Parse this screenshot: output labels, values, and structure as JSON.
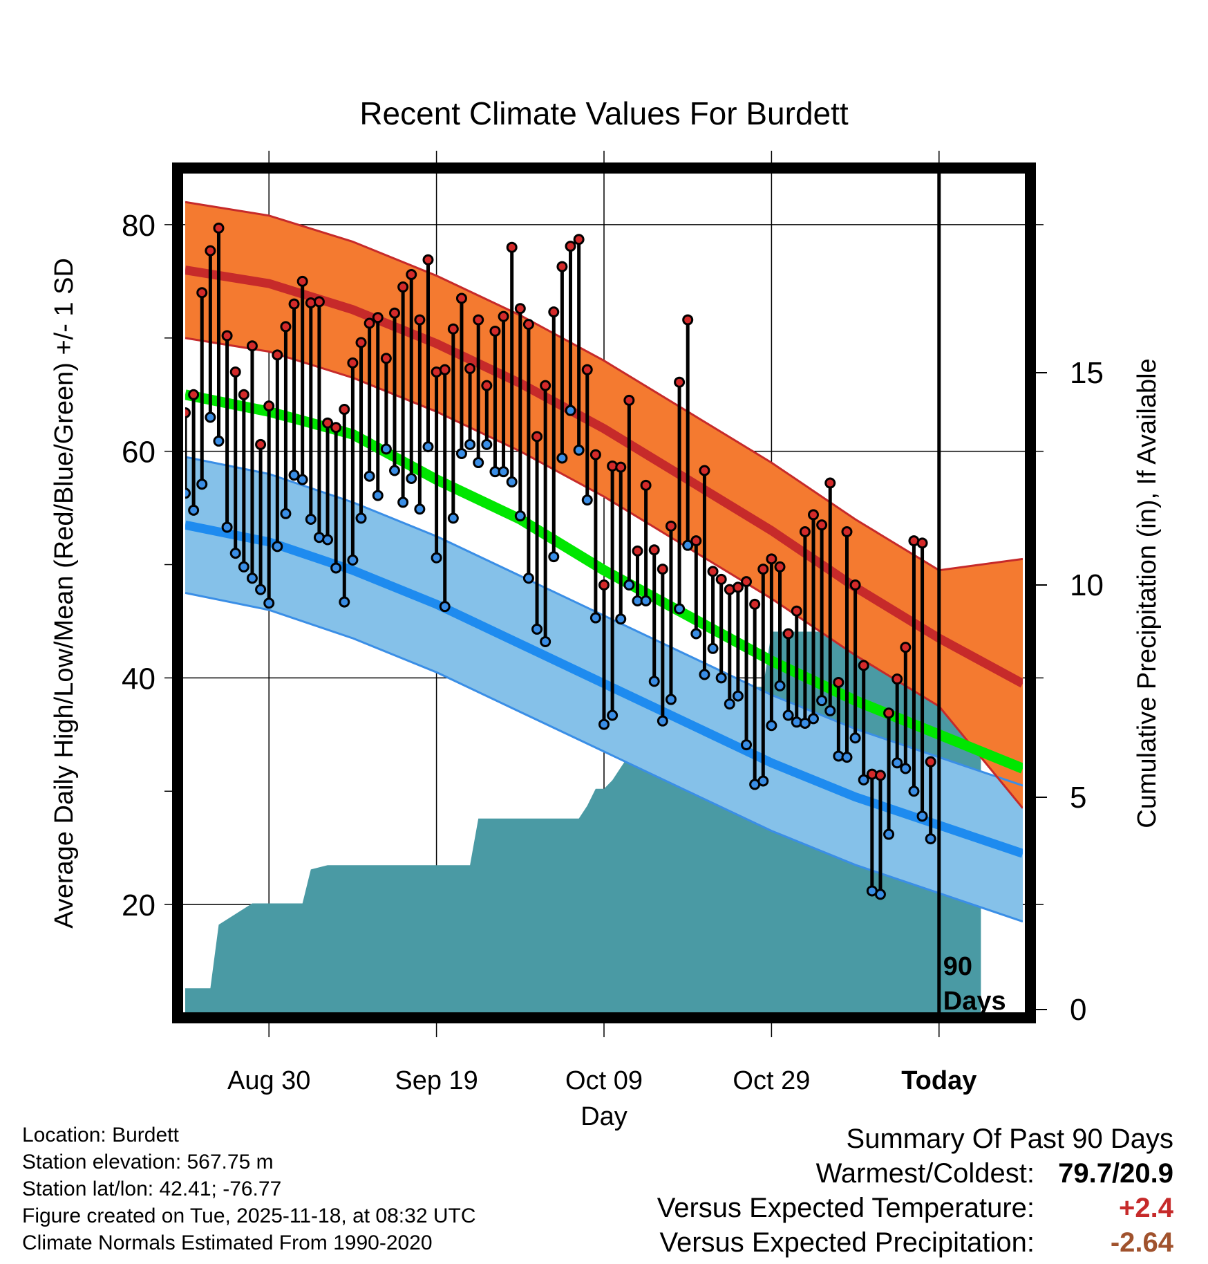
{
  "chart_data": {
    "type": "line",
    "title": "Recent Climate Values For Burdett",
    "xlabel": "Day",
    "ylabel": "Average Daily High/Low/Mean (Red/Blue/Green) +/- 1 SD",
    "y2label": "Cumulative Precipitation (in), If Available",
    "ylim": [
      10,
      85
    ],
    "y2lim": [
      0,
      20
    ],
    "xlim": [
      0,
      100
    ],
    "yticks": [
      "20",
      "40",
      "60",
      "80"
    ],
    "y2ticks": [
      "0",
      "5",
      "10",
      "15"
    ],
    "xtick_positions": [
      10,
      30,
      50,
      70,
      90
    ],
    "xtick_labels": [
      "Aug 30",
      "Sep 19",
      "Oct 09",
      "Oct 29",
      "Today"
    ],
    "today_day": 90,
    "today_label": [
      "90",
      "Days"
    ],
    "normals_x": [
      0,
      10,
      20,
      30,
      40,
      50,
      60,
      70,
      80,
      90,
      100
    ],
    "normal_high": [
      76.0,
      74.8,
      72.5,
      69.5,
      66.0,
      62.0,
      57.5,
      53.0,
      48.0,
      43.5,
      39.5
    ],
    "normal_high_sd": [
      6.0,
      6.0,
      6.0,
      6.0,
      6.0,
      6.0,
      6.0,
      6.0,
      6.0,
      6.0,
      11.0
    ],
    "normal_low": [
      53.5,
      52.0,
      49.5,
      46.5,
      43.0,
      39.5,
      36.0,
      32.5,
      29.5,
      27.0,
      24.5
    ],
    "normal_low_sd": [
      6.0,
      6.0,
      6.0,
      6.0,
      6.0,
      6.0,
      6.0,
      6.0,
      6.0,
      6.0,
      6.0
    ],
    "normal_mean": [
      65.0,
      63.5,
      61.5,
      57.5,
      54.0,
      49.5,
      45.5,
      41.5,
      38.0,
      35.0,
      32.0
    ],
    "series": [
      {
        "name": "Daily High",
        "color": "#d42a2a",
        "values": [
          63.4,
          65.0,
          74.0,
          77.7,
          79.7,
          70.2,
          67.0,
          65.0,
          69.3,
          60.6,
          64.0,
          68.5,
          71.0,
          73.0,
          75.0,
          73.1,
          73.2,
          62.5,
          62.1,
          63.7,
          67.8,
          69.6,
          71.3,
          71.8,
          68.2,
          72.2,
          74.5,
          75.6,
          71.6,
          76.9,
          67.0,
          67.2,
          70.8,
          73.5,
          67.3,
          71.6,
          65.8,
          70.6,
          71.9,
          78.0,
          72.6,
          71.2,
          61.3,
          65.8,
          72.3,
          76.3,
          78.1,
          78.7,
          67.2,
          59.7,
          48.2,
          58.7,
          58.6,
          64.5,
          51.2,
          57.0,
          51.3,
          49.6,
          53.4,
          66.1,
          71.6,
          52.1,
          58.3,
          49.4,
          48.7,
          47.8,
          48.0,
          48.5,
          46.5,
          49.6,
          50.5,
          49.8,
          43.9,
          45.9,
          52.9,
          54.4,
          53.5,
          57.2,
          39.6,
          52.9,
          48.2,
          41.1,
          31.5,
          31.4,
          36.9,
          39.9,
          42.7,
          52.1,
          51.9,
          32.6
        ]
      },
      {
        "name": "Daily Low",
        "color": "#3a8ee6",
        "values": [
          56.3,
          54.8,
          57.1,
          63.0,
          60.9,
          53.3,
          51.0,
          49.8,
          48.8,
          47.8,
          46.6,
          51.6,
          54.5,
          57.9,
          57.5,
          54.0,
          52.4,
          52.2,
          49.7,
          46.7,
          50.4,
          54.1,
          57.8,
          56.1,
          60.2,
          58.3,
          55.5,
          57.6,
          54.9,
          60.4,
          50.6,
          46.3,
          54.1,
          59.8,
          60.6,
          59.0,
          60.6,
          58.2,
          58.2,
          57.3,
          54.3,
          48.8,
          44.3,
          43.2,
          50.7,
          59.4,
          63.6,
          60.1,
          55.7,
          45.3,
          35.9,
          36.7,
          45.2,
          48.2,
          46.8,
          46.8,
          39.7,
          36.2,
          38.1,
          46.1,
          51.7,
          43.9,
          40.3,
          42.6,
          40.0,
          37.7,
          38.4,
          34.1,
          30.6,
          30.9,
          35.8,
          39.3,
          36.7,
          36.1,
          36.0,
          36.4,
          38.0,
          37.1,
          33.1,
          33.0,
          34.7,
          31.0,
          21.2,
          20.9,
          26.2,
          32.5,
          32.0,
          30.0,
          27.8,
          25.8
        ]
      }
    ],
    "precip_x": [
      0,
      3,
      4,
      8,
      14,
      15,
      17,
      33,
      34,
      35,
      47,
      48,
      49,
      50,
      51,
      52,
      53,
      54,
      58,
      59,
      60,
      61,
      62,
      63,
      64,
      65,
      66,
      67,
      68,
      69,
      70,
      71,
      72,
      78,
      79,
      80,
      81,
      82,
      83,
      88,
      89,
      90,
      95
    ],
    "precip_y": [
      0.5,
      0.5,
      2.0,
      2.5,
      2.5,
      3.3,
      3.4,
      3.4,
      3.4,
      4.5,
      4.5,
      4.8,
      5.2,
      5.2,
      5.4,
      5.7,
      6.0,
      6.0,
      6.0,
      6.1,
      6.3,
      7.3,
      7.3,
      7.3,
      7.4,
      7.6,
      7.6,
      7.6,
      7.6,
      7.6,
      8.9,
      8.9,
      8.9,
      8.9,
      9.2,
      9.2,
      9.7,
      9.8,
      9.8,
      9.8,
      10.2,
      10.2,
      10.2
    ],
    "colors": {
      "high_band": "#f47a30",
      "high_band_edge": "#c62a2a",
      "normal_high": "#c62a2a",
      "low_band": "#85c1e9",
      "low_band_edge": "#3a8ee6",
      "normal_low": "#1e8bef",
      "normal_mean": "#00e600",
      "overlap": "#941414",
      "precip": "#4a9aa4",
      "high_dot": "#d42a2a",
      "low_dot": "#3a8ee6"
    }
  },
  "meta": {
    "location": "Location: Burdett",
    "elevation": "Station elevation: 567.75 m",
    "latlon": "Station lat/lon: 42.41; -76.77",
    "created": "Figure created on Tue, 2025-11-18, at 08:32 UTC",
    "normals": "Climate Normals Estimated From 1990-2020"
  },
  "summary": {
    "title": "Summary Of Past 90 Days",
    "warmest_label": "Warmest/Coldest:",
    "warmest_value": "79.7/20.9",
    "temp_label": "Versus Expected Temperature:",
    "temp_value": "+2.4",
    "temp_color": "#c62a2a",
    "precip_label": "Versus Expected Precipitation:",
    "precip_value": "-2.64",
    "precip_color": "#a0522d"
  }
}
